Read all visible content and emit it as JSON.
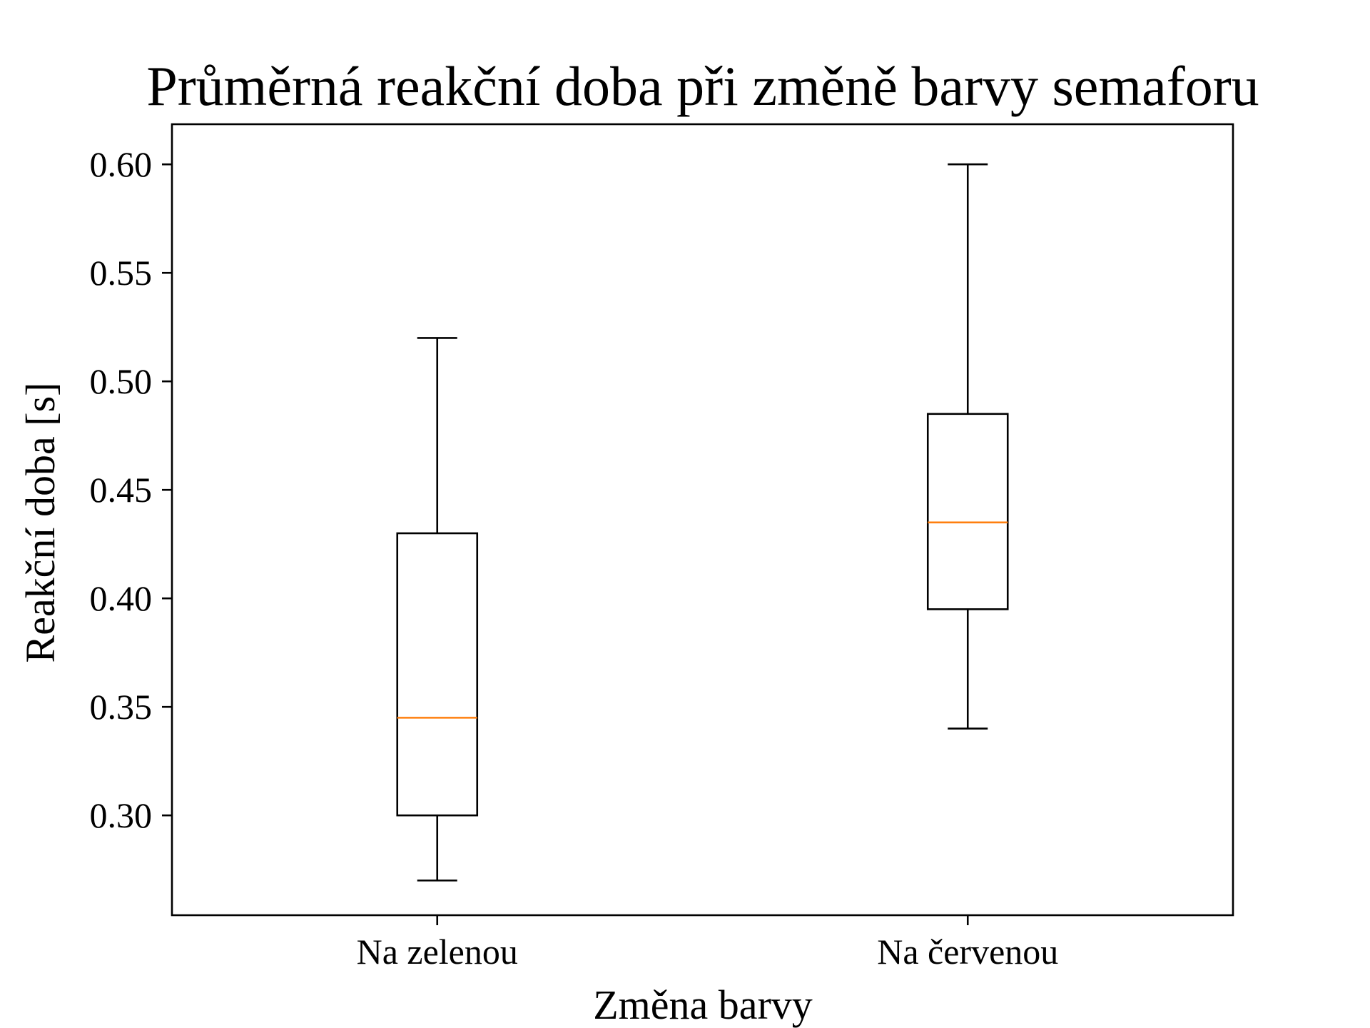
{
  "chart_data": {
    "type": "box",
    "title": "Průměrná reakční doba při změně barvy semaforu",
    "xlabel": "Změna barvy",
    "ylabel": "Reakční doba [s]",
    "ylim": [
      0.254,
      0.6185
    ],
    "yticks": [
      0.3,
      0.35,
      0.4,
      0.45,
      0.5,
      0.55,
      0.6
    ],
    "ytick_labels": [
      "0.30",
      "0.35",
      "0.40",
      "0.45",
      "0.50",
      "0.55",
      "0.60"
    ],
    "categories": [
      "Na zelenou",
      "Na červenou"
    ],
    "boxes": [
      {
        "category": "Na zelenou",
        "whisker_low": 0.27,
        "q1": 0.3,
        "median": 0.345,
        "q3": 0.43,
        "whisker_high": 0.52
      },
      {
        "category": "Na červenou",
        "whisker_low": 0.34,
        "q1": 0.395,
        "median": 0.435,
        "q3": 0.485,
        "whisker_high": 0.6
      }
    ],
    "grid": false,
    "colors": {
      "box": "#000000",
      "median": "#ff7f0e"
    }
  }
}
